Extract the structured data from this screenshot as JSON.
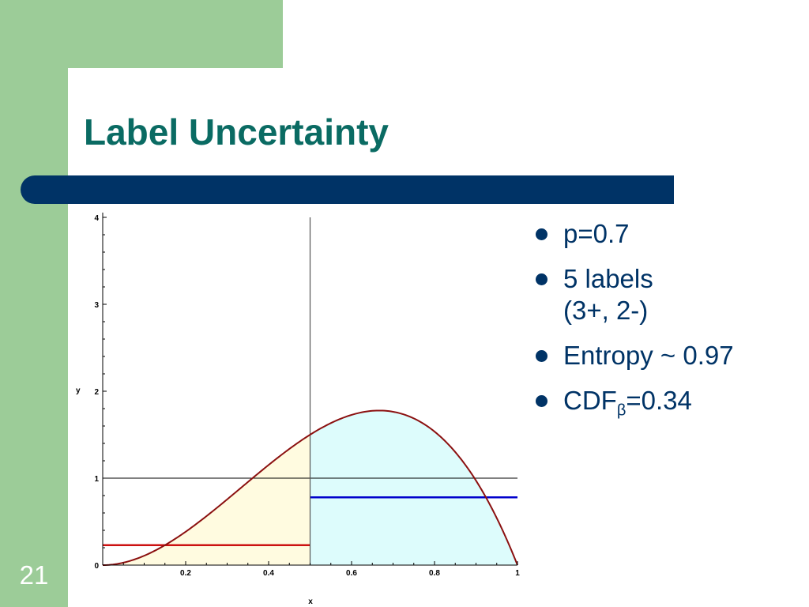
{
  "slide": {
    "title": "Label Uncertainty",
    "slide_number": "21"
  },
  "bullets": [
    {
      "text": "p=0.7"
    },
    {
      "text": "5 labels",
      "text2": "(3+, 2-)"
    },
    {
      "text": "Entropy ~ 0.97"
    },
    {
      "text": "CDF",
      "sub": "β",
      "text_after": "=0.34"
    }
  ],
  "chart_data": {
    "type": "line",
    "title": "",
    "xlabel": "x",
    "ylabel": "y",
    "xlim": [
      0,
      1
    ],
    "ylim": [
      0,
      4
    ],
    "x_ticks": [
      0.2,
      0.4,
      0.6,
      0.8,
      1
    ],
    "y_ticks": [
      0,
      1,
      2,
      3,
      4
    ],
    "grid": false,
    "series": [
      {
        "kind": "beta_pdf",
        "alpha": 3,
        "beta": 2,
        "color": "#8b1010"
      }
    ],
    "vertical_lines": [
      {
        "x": 0.5,
        "color": "#555555"
      }
    ],
    "horizontal_lines": [
      {
        "y": 1,
        "x_start": 0,
        "x_end": 1,
        "color": "#000000"
      },
      {
        "y": 0.23,
        "x_start": 0,
        "x_end": 0.5,
        "color": "#cc1111"
      },
      {
        "y": 0.78,
        "x_start": 0.5,
        "x_end": 1,
        "color": "#0000cc"
      }
    ],
    "shaded_regions": [
      {
        "x_from": 0,
        "x_to": 0.5,
        "color": "#fffbe0"
      },
      {
        "x_from": 0.5,
        "x_to": 1,
        "color": "#ddfcfc"
      }
    ]
  }
}
